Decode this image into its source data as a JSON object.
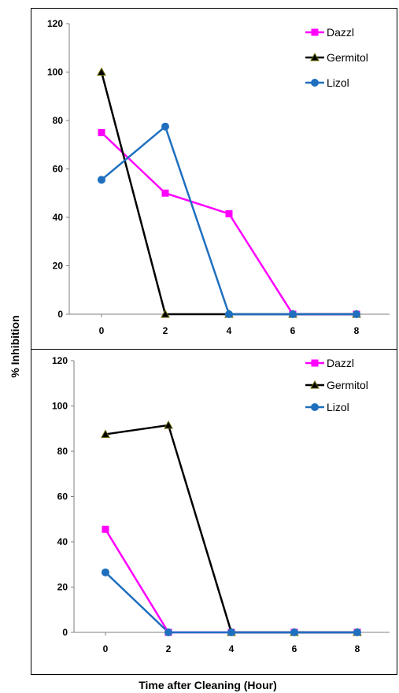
{
  "figure": {
    "ylabel": "% Inhibition",
    "xlabel": "Time after Cleaning (Hour)"
  },
  "chart_data": [
    {
      "type": "line",
      "x": [
        0,
        2,
        4,
        6,
        8
      ],
      "ylim": [
        0,
        120
      ],
      "yticks": [
        "0",
        "20",
        "40",
        "60",
        "80",
        "100",
        "120"
      ],
      "xticks": [
        "0",
        "2",
        "4",
        "6",
        "8"
      ],
      "legend_position": "top-right",
      "grid": false,
      "series": [
        {
          "name": "Dazzl",
          "color": "#ff00ff",
          "marker": "square",
          "values": [
            75,
            50,
            41.5,
            0,
            0
          ]
        },
        {
          "name": "Germitol",
          "color": "#000000",
          "marker": "triangle",
          "values": [
            100,
            0,
            0,
            0,
            0
          ]
        },
        {
          "name": "Lizol",
          "color": "#1f6fbf",
          "marker": "circle",
          "values": [
            55.5,
            77.5,
            0,
            0,
            0
          ]
        }
      ]
    },
    {
      "type": "line",
      "x": [
        0,
        2,
        4,
        6,
        8
      ],
      "ylim": [
        0,
        120
      ],
      "yticks": [
        "0",
        "20",
        "40",
        "60",
        "80",
        "100",
        "120"
      ],
      "xticks": [
        "0",
        "2",
        "4",
        "6",
        "8"
      ],
      "legend_position": "top-right",
      "grid": false,
      "series": [
        {
          "name": "Dazzl",
          "color": "#ff00ff",
          "marker": "square",
          "values": [
            45.5,
            0,
            0,
            0,
            0
          ]
        },
        {
          "name": "Germitol",
          "color": "#000000",
          "marker": "triangle",
          "values": [
            87.5,
            91.5,
            0,
            0,
            0
          ]
        },
        {
          "name": "Lizol",
          "color": "#1f6fbf",
          "marker": "circle",
          "values": [
            26.5,
            0,
            0,
            0,
            0
          ]
        }
      ]
    }
  ]
}
